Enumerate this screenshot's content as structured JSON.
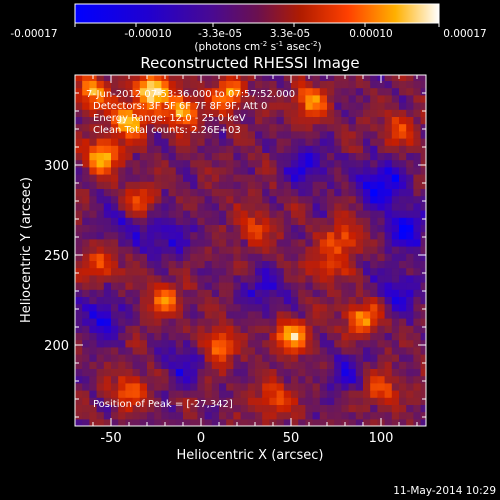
{
  "chart_data": {
    "type": "heatmap",
    "title": "Reconstructed RHESSI Image",
    "xlabel": "Heliocentric X (arcsec)",
    "ylabel": "Heliocentric Y (arcsec)",
    "xlim": [
      -70,
      125
    ],
    "ylim": [
      155,
      350
    ],
    "x_ticks": [
      -50,
      0,
      50,
      100
    ],
    "y_ticks": [
      200,
      250,
      300
    ],
    "colorbar": {
      "min": -0.00017,
      "max": 0.00017,
      "ticks": [
        "-0.00017",
        "-0.00010",
        "-3.3e-05",
        "3.3e-05",
        "0.00010",
        "0.00017"
      ],
      "unit_label": "(photons cm",
      "unit_exp1": "-2",
      "unit_mid": " s",
      "unit_exp2": "-1",
      "unit_tail": " asec",
      "unit_exp3": "-2",
      "unit_close": ")"
    },
    "annotations": [
      "7-Jun-2012 07:53:36.000 to 07:57:52.000",
      "Detectors: 3F 5F 6F 7F 8F 9F, Att 0",
      "Energy Range: 12.0 - 25.0 keV",
      "Clean    Total counts: 2.26E+03"
    ],
    "peak_label": "Position of Peak = [-27,342]",
    "peak": [
      -27,
      342
    ],
    "grid": false,
    "colors": {
      "cmap": [
        "#0000ff",
        "#3000c8",
        "#501080",
        "#8a2030",
        "#c81e00",
        "#ff5a00",
        "#ffb400",
        "#ffffff"
      ]
    },
    "hotspots": [
      [
        -27,
        342,
        1.0
      ],
      [
        -40,
        325,
        0.9
      ],
      [
        -55,
        305,
        0.85
      ],
      [
        -10,
        330,
        0.8
      ],
      [
        15,
        340,
        0.7
      ],
      [
        60,
        335,
        0.7
      ],
      [
        -60,
        340,
        0.75
      ],
      [
        -35,
        280,
        0.6
      ],
      [
        80,
        260,
        0.55
      ],
      [
        50,
        205,
        0.8
      ],
      [
        90,
        215,
        0.7
      ],
      [
        10,
        200,
        0.65
      ],
      [
        -20,
        225,
        0.6
      ],
      [
        100,
        175,
        0.5
      ],
      [
        -40,
        175,
        0.55
      ],
      [
        40,
        170,
        0.5
      ],
      [
        70,
        245,
        0.5
      ],
      [
        110,
        320,
        0.45
      ],
      [
        -55,
        245,
        0.5
      ],
      [
        30,
        265,
        0.45
      ]
    ],
    "coldspots": [
      [
        100,
        290,
        1.0
      ],
      [
        115,
        265,
        0.9
      ],
      [
        -55,
        215,
        0.8
      ],
      [
        -20,
        260,
        0.7
      ],
      [
        60,
        300,
        0.7
      ],
      [
        35,
        230,
        0.6
      ],
      [
        -10,
        190,
        0.6
      ],
      [
        80,
        185,
        0.6
      ],
      [
        110,
        230,
        0.7
      ],
      [
        -45,
        270,
        0.6
      ]
    ]
  },
  "footer_date": "11-May-2014 10:29"
}
